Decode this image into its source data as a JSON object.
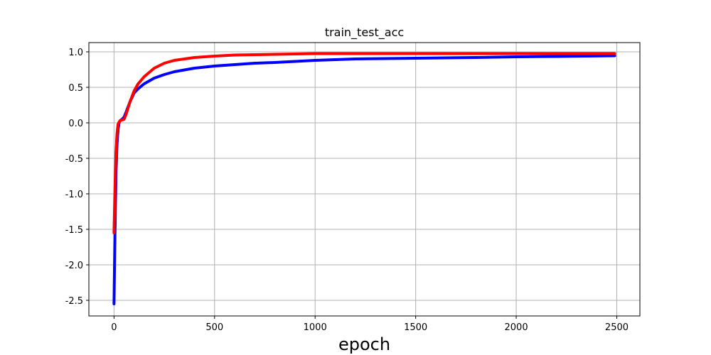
{
  "chart_data": {
    "type": "line",
    "title": "train_test_acc",
    "xlabel": "epoch",
    "ylabel": "",
    "xlim": [
      -125,
      2615
    ],
    "ylim": [
      -2.72,
      1.13
    ],
    "xticks": [
      0,
      500,
      1000,
      1500,
      2000,
      2500
    ],
    "xtick_labels": [
      "0",
      "500",
      "1000",
      "1500",
      "2000",
      "2500"
    ],
    "yticks": [
      1.0,
      0.5,
      0.0,
      -0.5,
      -1.0,
      -1.5,
      -2.0,
      -2.5
    ],
    "ytick_labels": [
      "1.0",
      "0.5",
      "0.0",
      "-0.5",
      "-1.0",
      "-1.5",
      "-2.0",
      "-2.5"
    ],
    "grid": true,
    "series": [
      {
        "color": "#0000ff",
        "x": [
          0,
          5,
          10,
          15,
          20,
          25,
          30,
          40,
          50,
          60,
          80,
          100,
          120,
          150,
          200,
          250,
          300,
          400,
          500,
          600,
          700,
          800,
          1000,
          1200,
          1500,
          1800,
          2000,
          2200,
          2490
        ],
        "y": [
          -2.55,
          -1.5,
          -0.7,
          -0.3,
          -0.1,
          0.0,
          0.03,
          0.05,
          0.08,
          0.15,
          0.3,
          0.42,
          0.48,
          0.55,
          0.63,
          0.68,
          0.72,
          0.77,
          0.8,
          0.82,
          0.84,
          0.85,
          0.88,
          0.9,
          0.91,
          0.92,
          0.93,
          0.935,
          0.945
        ]
      },
      {
        "color": "#ff0000",
        "x": [
          0,
          5,
          10,
          15,
          20,
          25,
          30,
          40,
          50,
          60,
          80,
          100,
          120,
          150,
          200,
          250,
          300,
          400,
          500,
          600,
          800,
          1000,
          1200,
          1500,
          2000,
          2490
        ],
        "y": [
          -1.55,
          -0.9,
          -0.4,
          -0.15,
          -0.02,
          0.01,
          0.03,
          0.04,
          0.05,
          0.12,
          0.3,
          0.45,
          0.55,
          0.65,
          0.77,
          0.84,
          0.88,
          0.92,
          0.94,
          0.955,
          0.965,
          0.975,
          0.975,
          0.975,
          0.975,
          0.975
        ]
      }
    ]
  }
}
